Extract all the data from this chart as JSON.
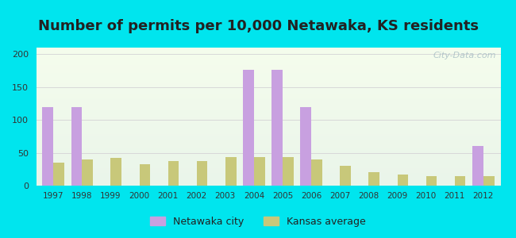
{
  "title": "Number of permits per 10,000 Netawaka, KS residents",
  "years": [
    1997,
    1998,
    1999,
    2000,
    2001,
    2002,
    2003,
    2004,
    2005,
    2006,
    2007,
    2008,
    2009,
    2010,
    2011,
    2012
  ],
  "netawaka_values": [
    120,
    120,
    0,
    0,
    0,
    0,
    0,
    176,
    176,
    120,
    0,
    0,
    0,
    0,
    0,
    60
  ],
  "kansas_values": [
    35,
    40,
    42,
    33,
    37,
    37,
    43,
    43,
    43,
    40,
    30,
    21,
    17,
    15,
    14,
    15
  ],
  "netawaka_color": "#c8a0e0",
  "kansas_color": "#c8c87a",
  "bar_width": 0.38,
  "ylim": [
    0,
    210
  ],
  "yticks": [
    0,
    50,
    100,
    150,
    200
  ],
  "background_outer": "#00e5ee",
  "gradient_top": "#eaf5ea",
  "gradient_bottom": "#f5fded",
  "grid_color": "#d8d8d8",
  "title_fontsize": 13,
  "title_color": "#222222",
  "tick_color": "#333333",
  "watermark_text": "City-Data.com",
  "legend_netawaka": "Netawaka city",
  "legend_kansas": "Kansas average"
}
